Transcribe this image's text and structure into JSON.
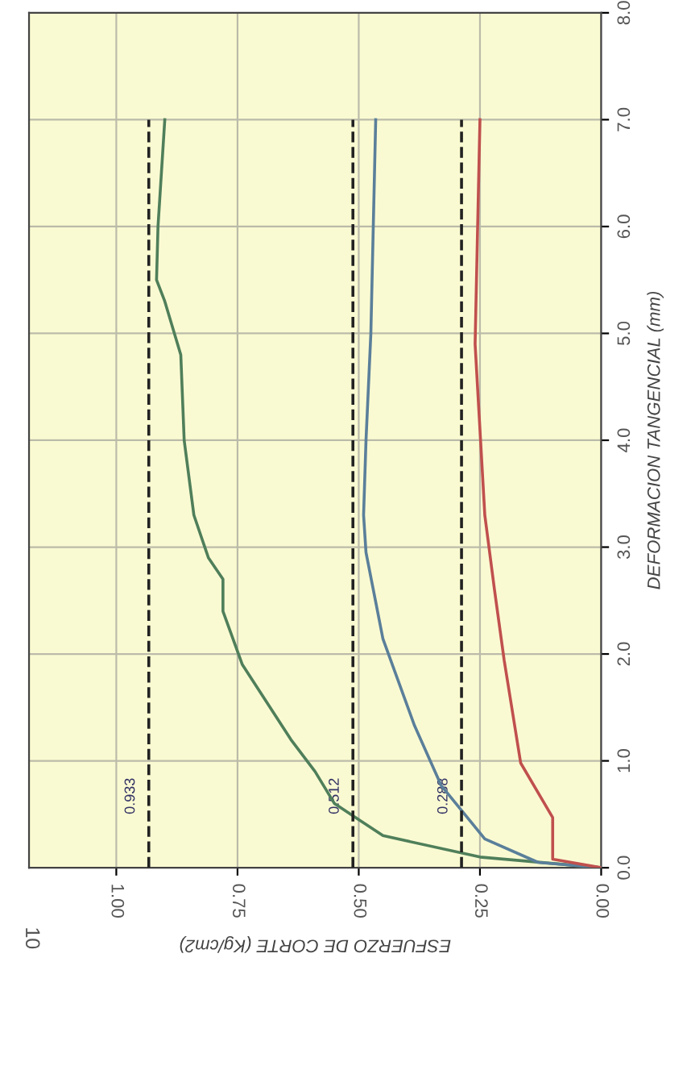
{
  "chart_data": {
    "type": "line",
    "xlabel": "ESFUERZO DE CORTE (Kg/cm2)",
    "ylabel": "DEFORMACION TANGENCIAL (mm)",
    "xlim": [
      1.18,
      0
    ],
    "xticks": [
      {
        "value": 1.0,
        "label": "1.00"
      },
      {
        "value": 0.75,
        "label": "0.75"
      },
      {
        "value": 0.5,
        "label": "0.50"
      },
      {
        "value": 0.25,
        "label": "0.25"
      },
      {
        "value": 0,
        "label": "0.00"
      }
    ],
    "ylim": [
      0,
      8
    ],
    "yticks": [
      {
        "value": 0,
        "label": "0.0"
      },
      {
        "value": 1,
        "label": "1.0"
      },
      {
        "value": 2,
        "label": "2.0"
      },
      {
        "value": 3,
        "label": "3.0"
      },
      {
        "value": 4,
        "label": "4.0"
      },
      {
        "value": 5,
        "label": "5.0"
      },
      {
        "value": 6,
        "label": "6.0"
      },
      {
        "value": 7,
        "label": "7.0"
      },
      {
        "value": 8,
        "label": "8.0"
      }
    ],
    "grid": true,
    "series": [
      {
        "color": "#4f7f5a",
        "line_style": "solid",
        "x": [
          0,
          0.25,
          0.45,
          0.55,
          0.59,
          0.64,
          0.74,
          0.78,
          0.78,
          0.81,
          0.84,
          0.86,
          0.867,
          0.9,
          0.917,
          0.914,
          0.9
        ],
        "values": [
          0,
          0.1,
          0.3,
          0.6,
          0.9,
          1.2,
          1.9,
          2.4,
          2.7,
          2.9,
          3.3,
          4.0,
          4.8,
          5.3,
          5.5,
          6.0,
          7.0
        ]
      },
      {
        "color": "#5a7f9a",
        "line_style": "solid",
        "x": [
          0,
          0.13,
          0.24,
          0.33,
          0.385,
          0.45,
          0.485,
          0.49,
          0.485,
          0.475,
          0.465
        ],
        "values": [
          0,
          0.05,
          0.27,
          0.77,
          1.33,
          2.14,
          2.95,
          3.3,
          4.0,
          5.0,
          7.0
        ]
      },
      {
        "color": "#c0504d",
        "line_style": "solid",
        "x": [
          0,
          0.1,
          0.1,
          0.166,
          0.2,
          0.22,
          0.24,
          0.26,
          0.25
        ],
        "values": [
          0,
          0.08,
          0.47,
          0.98,
          1.94,
          2.6,
          3.3,
          4.9,
          7.0
        ]
      },
      {
        "color": "#222222",
        "line_style": "dashed",
        "x": [
          0.933,
          0.933
        ],
        "values": [
          0,
          7.0
        ]
      },
      {
        "color": "#222222",
        "line_style": "dashed",
        "x": [
          0.512,
          0.512
        ],
        "values": [
          0,
          7.0
        ]
      },
      {
        "color": "#222222",
        "line_style": "dashed",
        "x": [
          0.288,
          0.288
        ],
        "values": [
          0,
          7.0
        ]
      }
    ],
    "annotations": [
      {
        "text": "0.933",
        "x": 0.933,
        "y": 0.5
      },
      {
        "text": "0.512",
        "x": 0.512,
        "y": 0.5
      },
      {
        "text": "0.288",
        "x": 0.288,
        "y": 0.5
      },
      "10"
    ]
  }
}
